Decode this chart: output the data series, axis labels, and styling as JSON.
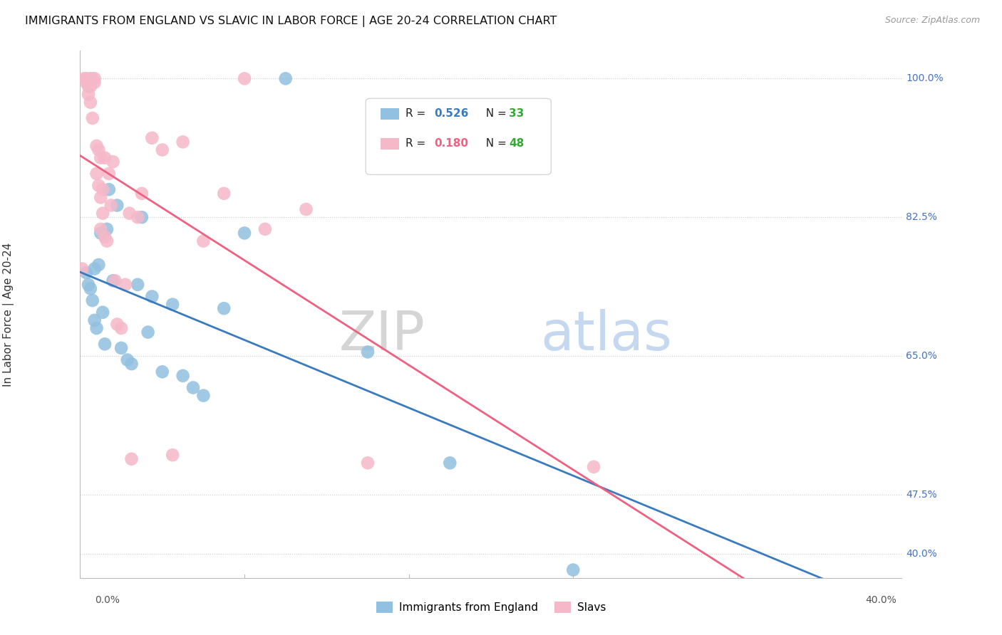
{
  "title": "IMMIGRANTS FROM ENGLAND VS SLAVIC IN LABOR FORCE | AGE 20-24 CORRELATION CHART",
  "source": "Source: ZipAtlas.com",
  "ylabel": "In Labor Force | Age 20-24",
  "yticks": [
    40.0,
    47.5,
    65.0,
    82.5,
    100.0
  ],
  "ytick_labels": [
    "40.0%",
    "47.5%",
    "65.0%",
    "82.5%",
    "100.0%"
  ],
  "xmin": 0.0,
  "xmax": 40.0,
  "ymin": 37.0,
  "ymax": 103.5,
  "england_color": "#92c0e0",
  "slavs_color": "#f5b8c8",
  "england_line_color": "#3a7abf",
  "slavs_line_color": "#f06080",
  "england_R": 0.526,
  "england_N": 33,
  "slavs_R": 0.18,
  "slavs_N": 48,
  "watermark_zip": "ZIP",
  "watermark_atlas": "atlas",
  "england_points_x": [
    0.3,
    0.4,
    0.5,
    0.6,
    0.7,
    0.7,
    0.8,
    0.9,
    1.0,
    1.1,
    1.2,
    1.3,
    1.4,
    1.6,
    1.8,
    2.0,
    2.3,
    2.5,
    2.8,
    3.0,
    3.3,
    3.5,
    4.0,
    4.5,
    5.0,
    5.5,
    6.0,
    7.0,
    8.0,
    10.0,
    14.0,
    18.0,
    24.0
  ],
  "england_points_y": [
    75.5,
    74.0,
    73.5,
    72.0,
    76.0,
    69.5,
    68.5,
    76.5,
    80.5,
    70.5,
    66.5,
    81.0,
    86.0,
    74.5,
    84.0,
    66.0,
    64.5,
    64.0,
    74.0,
    82.5,
    68.0,
    72.5,
    63.0,
    71.5,
    62.5,
    61.0,
    60.0,
    71.0,
    80.5,
    100.0,
    65.5,
    51.5,
    38.0
  ],
  "slavs_points_x": [
    0.1,
    0.2,
    0.3,
    0.3,
    0.4,
    0.4,
    0.5,
    0.5,
    0.5,
    0.5,
    0.6,
    0.6,
    0.7,
    0.7,
    0.8,
    0.8,
    0.9,
    0.9,
    1.0,
    1.0,
    1.0,
    1.1,
    1.1,
    1.2,
    1.2,
    1.3,
    1.4,
    1.5,
    1.6,
    1.7,
    1.8,
    2.0,
    2.2,
    2.4,
    2.5,
    2.8,
    3.0,
    3.5,
    4.0,
    4.5,
    5.0,
    6.0,
    7.0,
    8.0,
    9.0,
    11.0,
    14.0,
    25.0
  ],
  "slavs_points_y": [
    76.0,
    100.0,
    100.0,
    99.5,
    99.0,
    98.0,
    100.0,
    99.5,
    99.0,
    97.0,
    100.0,
    95.0,
    100.0,
    99.5,
    91.5,
    88.0,
    91.0,
    86.5,
    90.0,
    85.0,
    81.0,
    86.0,
    83.0,
    90.0,
    80.0,
    79.5,
    88.0,
    84.0,
    89.5,
    74.5,
    69.0,
    68.5,
    74.0,
    83.0,
    52.0,
    82.5,
    85.5,
    92.5,
    91.0,
    52.5,
    92.0,
    79.5,
    85.5,
    100.0,
    81.0,
    83.5,
    51.5,
    51.0
  ]
}
